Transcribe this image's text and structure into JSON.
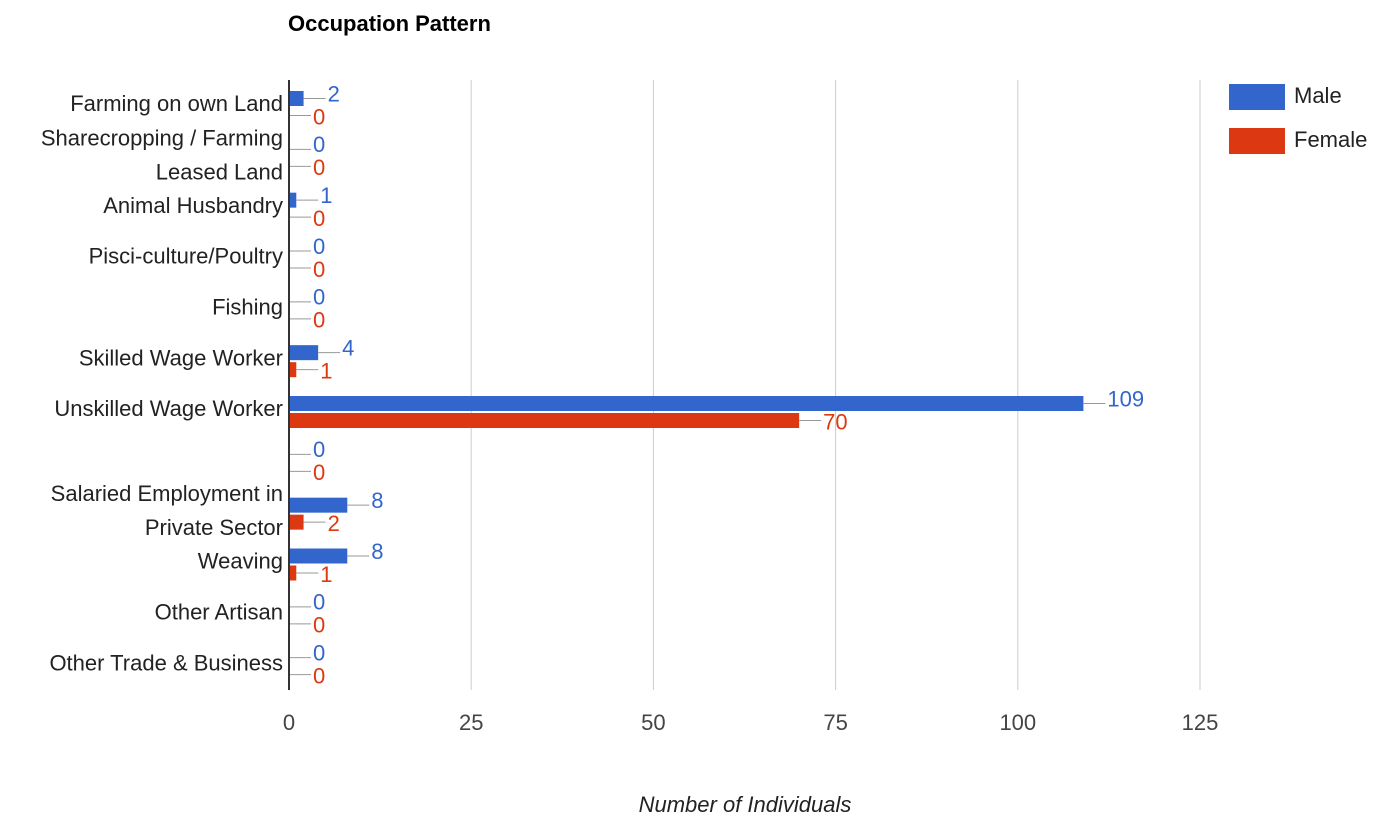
{
  "chart_data": {
    "type": "bar",
    "orientation": "horizontal",
    "title": "Occupation Pattern",
    "x_label": "Number of Individuals",
    "categories": [
      "Farming on own Land",
      "Sharecropping / Farming Leased Land",
      "Animal Husbandry",
      "Pisci-culture/Poultry",
      "Fishing",
      "Skilled Wage Worker",
      "Unskilled Wage Worker",
      null,
      "Salaried Employment in Private Sector",
      "Weaving",
      "Other Artisan",
      "Other Trade & Business"
    ],
    "series": [
      {
        "name": "Male",
        "color": "#3366cc",
        "values": [
          2,
          0,
          1,
          0,
          0,
          4,
          109,
          0,
          8,
          8,
          0,
          0
        ]
      },
      {
        "name": "Female",
        "color": "#dc3912",
        "values": [
          0,
          0,
          0,
          0,
          0,
          1,
          70,
          0,
          2,
          1,
          0,
          0
        ]
      }
    ],
    "xlim": [
      0,
      125
    ],
    "xticks": [
      0,
      25,
      50,
      75,
      100,
      125
    ],
    "grid": true,
    "legend": "top-right"
  }
}
